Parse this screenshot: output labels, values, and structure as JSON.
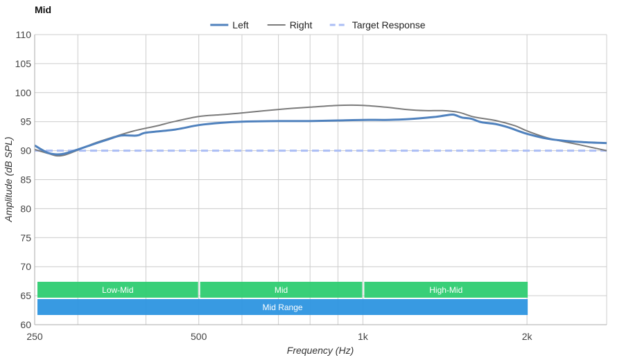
{
  "chart_data": {
    "type": "line",
    "title": "Mid",
    "xlabel": "Frequency (Hz)",
    "ylabel": "Amplitude (dB SPL)",
    "x_scale": "log",
    "xlim": [
      250,
      2800
    ],
    "ylim": [
      60,
      110
    ],
    "x_ticks": [
      {
        "value": 250,
        "label": "250"
      },
      {
        "value": 500,
        "label": "500"
      },
      {
        "value": 1000,
        "label": "1k"
      },
      {
        "value": 2000,
        "label": "2k"
      }
    ],
    "x_minor_gridlines": [
      300,
      400,
      600,
      700,
      800,
      900
    ],
    "y_ticks": [
      60,
      65,
      70,
      75,
      80,
      85,
      90,
      95,
      100,
      105,
      110
    ],
    "grid": true,
    "legend": {
      "position": "top-center"
    },
    "series": [
      {
        "name": "Left",
        "color": "#4f81bd",
        "style": "solid",
        "points": [
          [
            250,
            90.9
          ],
          [
            265,
            89.6
          ],
          [
            280,
            89.4
          ],
          [
            300,
            90.2
          ],
          [
            320,
            91.1
          ],
          [
            340,
            91.9
          ],
          [
            360,
            92.6
          ],
          [
            385,
            92.6
          ],
          [
            400,
            93.1
          ],
          [
            450,
            93.6
          ],
          [
            500,
            94.4
          ],
          [
            550,
            94.8
          ],
          [
            600,
            95.0
          ],
          [
            700,
            95.1
          ],
          [
            800,
            95.1
          ],
          [
            900,
            95.2
          ],
          [
            1000,
            95.3
          ],
          [
            1100,
            95.3
          ],
          [
            1200,
            95.4
          ],
          [
            1350,
            95.8
          ],
          [
            1450,
            96.2
          ],
          [
            1480,
            96.1
          ],
          [
            1520,
            95.7
          ],
          [
            1580,
            95.5
          ],
          [
            1650,
            94.9
          ],
          [
            1750,
            94.6
          ],
          [
            1850,
            94.0
          ],
          [
            2000,
            92.9
          ],
          [
            2200,
            92.0
          ],
          [
            2500,
            91.5
          ],
          [
            2800,
            91.3
          ]
        ]
      },
      {
        "name": "Right",
        "color": "#7a7a7a",
        "style": "solid",
        "points": [
          [
            250,
            90.2
          ],
          [
            265,
            89.5
          ],
          [
            275,
            89.1
          ],
          [
            285,
            89.3
          ],
          [
            300,
            90.1
          ],
          [
            320,
            91.2
          ],
          [
            350,
            92.4
          ],
          [
            380,
            93.4
          ],
          [
            420,
            94.3
          ],
          [
            450,
            95.0
          ],
          [
            500,
            95.9
          ],
          [
            550,
            96.2
          ],
          [
            600,
            96.5
          ],
          [
            700,
            97.1
          ],
          [
            800,
            97.5
          ],
          [
            900,
            97.8
          ],
          [
            1000,
            97.8
          ],
          [
            1100,
            97.5
          ],
          [
            1200,
            97.1
          ],
          [
            1300,
            96.9
          ],
          [
            1400,
            96.9
          ],
          [
            1500,
            96.6
          ],
          [
            1600,
            95.8
          ],
          [
            1750,
            95.2
          ],
          [
            1900,
            94.3
          ],
          [
            2000,
            93.4
          ],
          [
            2200,
            92.1
          ],
          [
            2500,
            91.0
          ],
          [
            2800,
            90.0
          ]
        ]
      },
      {
        "name": "Target Response",
        "color": "#aabdf5",
        "style": "dashed",
        "points": [
          [
            250,
            90
          ],
          [
            2800,
            90
          ]
        ]
      }
    ],
    "bands": [
      {
        "label": "Low-Mid",
        "from": 250,
        "to": 500,
        "row": 1,
        "color": "#2ecc71"
      },
      {
        "label": "Mid",
        "from": 500,
        "to": 1000,
        "row": 1,
        "color": "#2ecc71"
      },
      {
        "label": "High-Mid",
        "from": 1000,
        "to": 2000,
        "row": 1,
        "color": "#2ecc71"
      },
      {
        "label": "Mid Range",
        "from": 250,
        "to": 2000,
        "row": 2,
        "color": "#2d95e0"
      }
    ]
  }
}
